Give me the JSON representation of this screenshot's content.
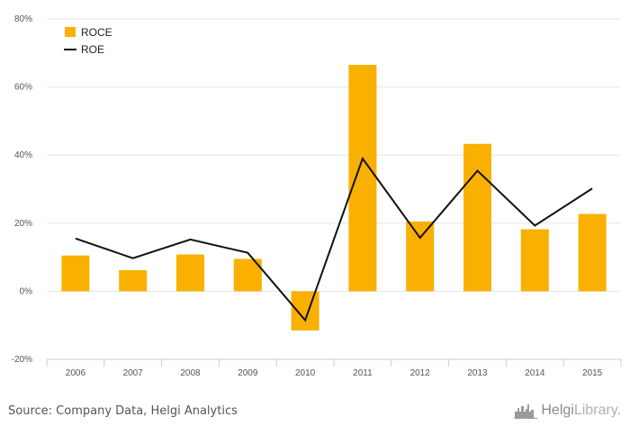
{
  "chart_data": {
    "type": "bar",
    "categories": [
      "2006",
      "2007",
      "2008",
      "2009",
      "2010",
      "2011",
      "2012",
      "2013",
      "2014",
      "2015"
    ],
    "series": [
      {
        "name": "ROCE",
        "type": "bar",
        "color": "#f9b000",
        "values": [
          10.5,
          6.2,
          10.8,
          9.5,
          -11.5,
          66.5,
          20.5,
          43.3,
          18.2,
          22.7
        ]
      },
      {
        "name": "ROE",
        "type": "line",
        "color": "#111111",
        "values": [
          15.5,
          9.7,
          15.2,
          11.3,
          -8.5,
          39.0,
          15.7,
          35.4,
          19.3,
          30.2
        ]
      }
    ],
    "yticks": [
      "-20%",
      "0%",
      "20%",
      "40%",
      "60%",
      "80%"
    ],
    "ylim": [
      -20,
      80
    ],
    "grid": true,
    "legend_position": "top-left"
  },
  "footer": {
    "source": "Source: Company Data, Helgi Analytics",
    "logo_bold": "Helgi",
    "logo_light": "Library."
  },
  "icons": {
    "logo": "city-skyline-icon"
  }
}
